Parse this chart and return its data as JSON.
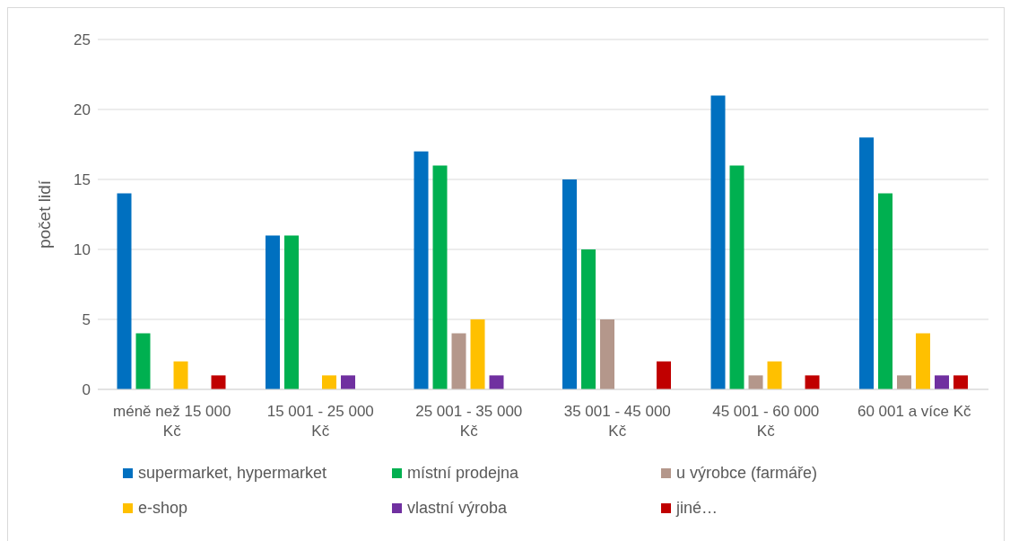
{
  "chart_data": {
    "type": "bar",
    "ylabel": "počet lidí",
    "categories": [
      "méně než 15 000 Kč",
      "15 001 - 25 000 Kč",
      "25 001 - 35 000 Kč",
      "35 001 - 45 000 Kč",
      "45 001 - 60 000 Kč",
      "60 001 a více Kč"
    ],
    "series": [
      {
        "name": "supermarket, hypermarket",
        "color": "#0070c0",
        "values": [
          14,
          11,
          17,
          15,
          21,
          18
        ]
      },
      {
        "name": "místní prodejna",
        "color": "#00b050",
        "values": [
          4,
          11,
          16,
          10,
          16,
          14
        ]
      },
      {
        "name": "u výrobce (farmáře)",
        "color": "#b4978b",
        "values": [
          0,
          0,
          4,
          5,
          1,
          1
        ]
      },
      {
        "name": "e-shop",
        "color": "#ffc000",
        "values": [
          2,
          1,
          5,
          0,
          2,
          4
        ]
      },
      {
        "name": "vlastní výroba",
        "color": "#7030a0",
        "values": [
          0,
          1,
          1,
          0,
          0,
          1
        ]
      },
      {
        "name": "jiné…",
        "color": "#c00000",
        "values": [
          1,
          0,
          0,
          2,
          1,
          1
        ]
      }
    ],
    "ylim": [
      0,
      25
    ],
    "yticks": [
      0,
      5,
      10,
      15,
      20,
      25
    ],
    "grid": "y",
    "legend": "bottom"
  }
}
